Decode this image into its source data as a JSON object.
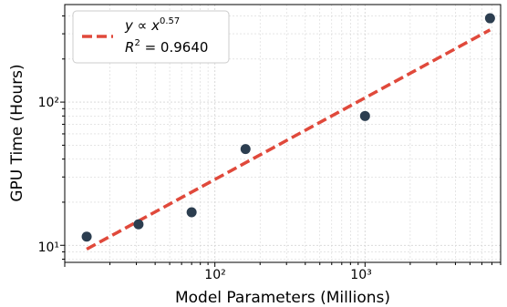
{
  "chart_data": {
    "type": "scatter",
    "xlabel": "Model Parameters (Millions)",
    "ylabel": "GPU Time (Hours)",
    "xscale": "log",
    "yscale": "log",
    "xlim": [
      10,
      8000
    ],
    "ylim": [
      7.6,
      480
    ],
    "xtick_labels": [
      "10²",
      "10³"
    ],
    "ytick_labels": [
      "10¹",
      "10²"
    ],
    "grid": true,
    "legend_placement": "top-left",
    "points": [
      {
        "x": 14,
        "y": 11.5
      },
      {
        "x": 31,
        "y": 14
      },
      {
        "x": 70,
        "y": 17
      },
      {
        "x": 160,
        "y": 47
      },
      {
        "x": 1000,
        "y": 80
      },
      {
        "x": 6800,
        "y": 385
      }
    ],
    "fit": {
      "exponent": 0.57,
      "r2": "0.9640",
      "x_range": [
        14,
        6800
      ],
      "y_start": 9.4,
      "label_formula_prefix": "y ∝ x",
      "label_exponent": "0.57",
      "label_r2_prefix": "R",
      "label_r2_power": "2",
      "label_r2_value": " = 0.9640"
    },
    "colors": {
      "points": "#2c3e50",
      "fit_line": "#e0493b",
      "grid": "#d6d6d6"
    }
  }
}
